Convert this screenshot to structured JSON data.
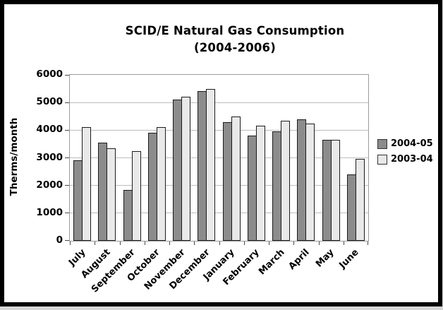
{
  "chart_data": {
    "type": "bar",
    "title_line1": "SCID/E Natural Gas Consumption",
    "title_line2": "(2004-2006)",
    "ylabel": "Therms/month",
    "xlabel": "",
    "ylim": [
      0,
      6000
    ],
    "ytick_step": 1000,
    "yticks": [
      0,
      1000,
      2000,
      3000,
      4000,
      5000,
      6000
    ],
    "grid": true,
    "legend_position": "right",
    "categories": [
      "July",
      "August",
      "September",
      "October",
      "November",
      "December",
      "January",
      "February",
      "March",
      "April",
      "May",
      "June"
    ],
    "series": [
      {
        "name": "2004-05",
        "color": "#8c8c8c",
        "values": [
          2900,
          3550,
          1850,
          3900,
          5100,
          5400,
          4300,
          3800,
          3950,
          4400,
          3650,
          2400
        ]
      },
      {
        "name": "2003-04",
        "color": "#e9e9e9",
        "values": [
          4100,
          3350,
          3250,
          4100,
          5200,
          5500,
          4500,
          4150,
          4350,
          4250,
          3650,
          2950
        ]
      }
    ],
    "colors": {
      "bar_border": "#1c1c1c",
      "gridline": "#bdbdbd",
      "plot_border": "#9b9b9b",
      "frame_border": "#000000",
      "background": "#ffffff"
    }
  }
}
